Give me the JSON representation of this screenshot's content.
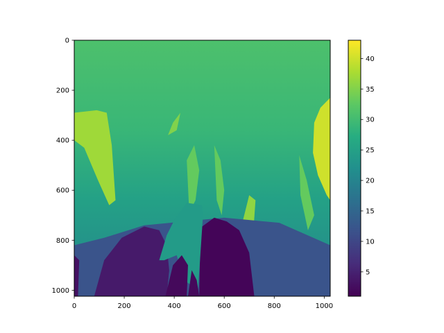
{
  "chart_data": {
    "type": "heatmap",
    "title": "",
    "xlabel": "",
    "ylabel": "",
    "x_range": [
      0,
      1024
    ],
    "y_range": [
      0,
      1024
    ],
    "y_inverted": true,
    "x_ticks": [
      {
        "value": 0,
        "label": "0"
      },
      {
        "value": 200,
        "label": "200"
      },
      {
        "value": 400,
        "label": "400"
      },
      {
        "value": 600,
        "label": "600"
      },
      {
        "value": 800,
        "label": "800"
      },
      {
        "value": 1000,
        "label": "1000"
      }
    ],
    "y_ticks": [
      {
        "value": 0,
        "label": "0"
      },
      {
        "value": 200,
        "label": "200"
      },
      {
        "value": 400,
        "label": "400"
      },
      {
        "value": 600,
        "label": "600"
      },
      {
        "value": 800,
        "label": "800"
      },
      {
        "value": 1000,
        "label": "1000"
      }
    ],
    "colormap": "viridis",
    "colorbar": {
      "range": [
        1,
        43
      ],
      "ticks": [
        {
          "value": 5,
          "label": "5"
        },
        {
          "value": 10,
          "label": "10"
        },
        {
          "value": 15,
          "label": "15"
        },
        {
          "value": 20,
          "label": "20"
        },
        {
          "value": 25,
          "label": "25"
        },
        {
          "value": 30,
          "label": "30"
        },
        {
          "value": 35,
          "label": "35"
        },
        {
          "value": 40,
          "label": "40"
        }
      ]
    },
    "regions": [
      {
        "name": "background",
        "value": 29
      },
      {
        "name": "top-band",
        "value": 31
      },
      {
        "name": "left-plume",
        "value": 37,
        "points": [
          [
            0,
            290
          ],
          [
            90,
            280
          ],
          [
            130,
            290
          ],
          [
            150,
            420
          ],
          [
            165,
            640
          ],
          [
            140,
            660
          ],
          [
            95,
            560
          ],
          [
            40,
            430
          ],
          [
            0,
            400
          ]
        ]
      },
      {
        "name": "right-plume",
        "value": 40,
        "points": [
          [
            1024,
            230
          ],
          [
            985,
            270
          ],
          [
            960,
            330
          ],
          [
            955,
            450
          ],
          [
            975,
            540
          ],
          [
            1010,
            620
          ],
          [
            1024,
            640
          ]
        ]
      },
      {
        "name": "center-plume",
        "value": 35,
        "points": [
          [
            375,
            380
          ],
          [
            395,
            330
          ],
          [
            425,
            290
          ],
          [
            410,
            360
          ]
        ]
      },
      {
        "name": "streak-470",
        "value": 33,
        "points": [
          [
            450,
            480
          ],
          [
            480,
            420
          ],
          [
            500,
            520
          ],
          [
            485,
            640
          ],
          [
            460,
            690
          ]
        ]
      },
      {
        "name": "streak-580",
        "value": 33,
        "points": [
          [
            560,
            420
          ],
          [
            585,
            480
          ],
          [
            600,
            600
          ],
          [
            590,
            700
          ],
          [
            570,
            640
          ]
        ]
      },
      {
        "name": "streak-690",
        "value": 36,
        "points": [
          [
            665,
            760
          ],
          [
            700,
            620
          ],
          [
            725,
            640
          ],
          [
            710,
            860
          ],
          [
            690,
            880
          ]
        ]
      },
      {
        "name": "streak-920",
        "value": 33,
        "points": [
          [
            900,
            460
          ],
          [
            930,
            560
          ],
          [
            960,
            700
          ],
          [
            935,
            760
          ],
          [
            905,
            620
          ]
        ]
      },
      {
        "name": "mid-dark-band",
        "value": 12,
        "points": [
          [
            0,
            820
          ],
          [
            120,
            790
          ],
          [
            280,
            740
          ],
          [
            600,
            710
          ],
          [
            820,
            730
          ],
          [
            1024,
            820
          ],
          [
            1024,
            1024
          ],
          [
            0,
            1024
          ]
        ]
      },
      {
        "name": "left-dark-lobe",
        "value": 4,
        "points": [
          [
            80,
            1024
          ],
          [
            120,
            880
          ],
          [
            190,
            790
          ],
          [
            280,
            745
          ],
          [
            340,
            760
          ],
          [
            370,
            820
          ],
          [
            380,
            920
          ],
          [
            370,
            1024
          ]
        ]
      },
      {
        "name": "center-dark-lobe",
        "value": 1.5,
        "points": [
          [
            500,
            1024
          ],
          [
            505,
            750
          ],
          [
            560,
            710
          ],
          [
            610,
            725
          ],
          [
            660,
            760
          ],
          [
            700,
            850
          ],
          [
            720,
            1024
          ]
        ]
      },
      {
        "name": "left-edge-dark",
        "value": 3,
        "points": [
          [
            0,
            860
          ],
          [
            20,
            880
          ],
          [
            15,
            1024
          ],
          [
            0,
            1024
          ]
        ]
      },
      {
        "name": "central-teal-wedge",
        "value": 24,
        "points": [
          [
            340,
            880
          ],
          [
            370,
            780
          ],
          [
            400,
            720
          ],
          [
            450,
            650
          ],
          [
            510,
            660
          ],
          [
            515,
            700
          ],
          [
            495,
            1000
          ],
          [
            440,
            960
          ],
          [
            410,
            860
          ],
          [
            360,
            880
          ]
        ]
      },
      {
        "name": "dark-notch-a",
        "value": 2,
        "points": [
          [
            365,
            1024
          ],
          [
            395,
            900
          ],
          [
            430,
            860
          ],
          [
            455,
            900
          ],
          [
            450,
            1024
          ]
        ]
      },
      {
        "name": "dark-notch-b",
        "value": 2,
        "points": [
          [
            455,
            1024
          ],
          [
            470,
            920
          ],
          [
            490,
            960
          ],
          [
            500,
            1024
          ]
        ]
      }
    ]
  }
}
